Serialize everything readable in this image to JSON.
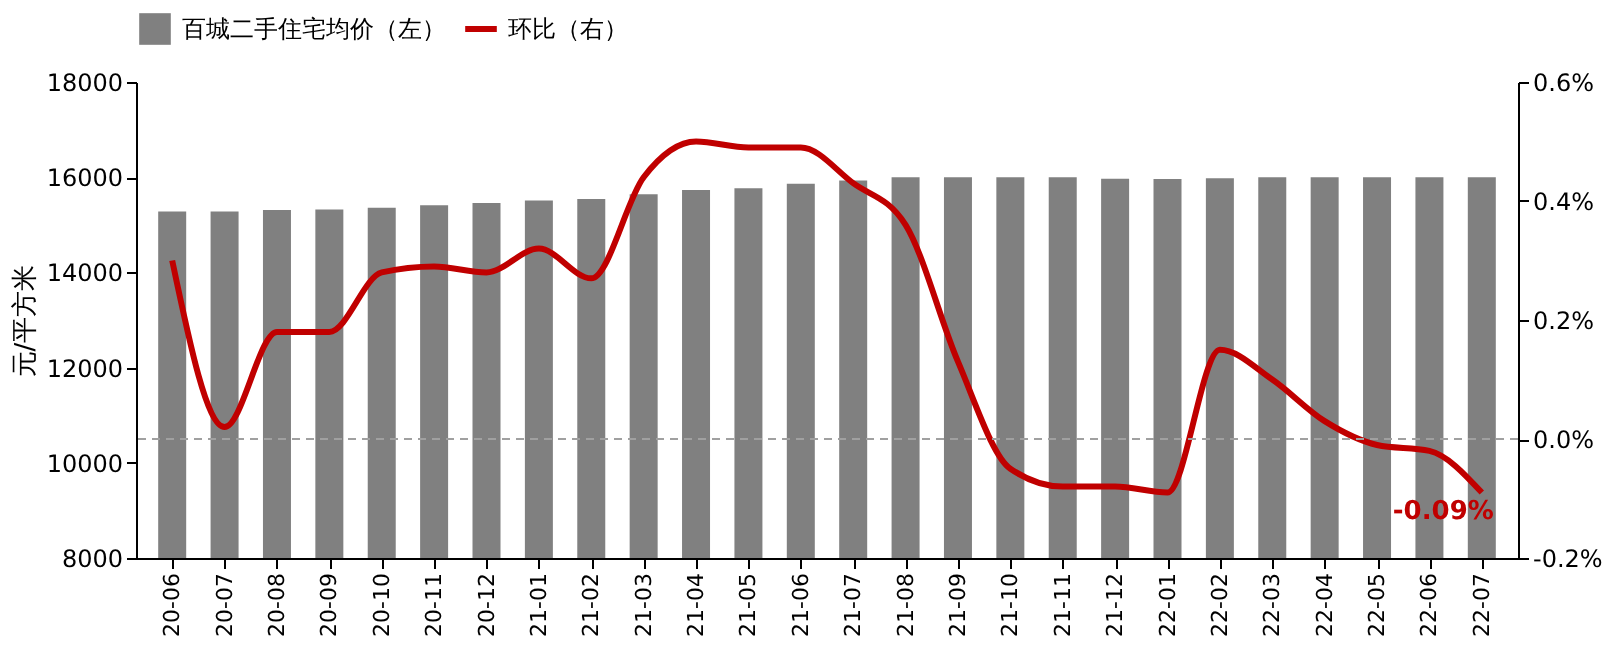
{
  "chart_data": {
    "type": "bar",
    "categories": [
      "20-06",
      "20-07",
      "20-08",
      "20-09",
      "20-10",
      "20-11",
      "20-12",
      "21-01",
      "21-02",
      "21-03",
      "21-04",
      "21-05",
      "21-06",
      "21-07",
      "21-08",
      "21-09",
      "21-10",
      "21-11",
      "21-12",
      "22-01",
      "22-02",
      "22-03",
      "22-04",
      "22-05",
      "22-06",
      "22-07"
    ],
    "ylabel": "元/平方米",
    "series": [
      {
        "name": "百城二手住宅均价（左）",
        "color": "#808080",
        "values": [
          15280,
          15280,
          15310,
          15320,
          15360,
          15410,
          15460,
          15510,
          15540,
          15640,
          15730,
          15770,
          15860,
          15930,
          16000,
          16000,
          16000,
          16000,
          15970,
          15960,
          15980,
          16000,
          16000,
          16000,
          16000,
          16000
        ]
      },
      {
        "name": "环比（右）",
        "color": "#c00000",
        "type": "line",
        "axis": "y2",
        "values": [
          0.3,
          0.02,
          0.18,
          0.18,
          0.28,
          0.29,
          0.28,
          0.32,
          0.27,
          0.44,
          0.5,
          0.49,
          0.49,
          0.43,
          0.36,
          0.13,
          -0.05,
          -0.08,
          -0.08,
          -0.09,
          0.15,
          0.1,
          0.03,
          -0.01,
          -0.02,
          -0.09
        ]
      }
    ],
    "ylim": [
      8000,
      18000
    ],
    "yticks": [
      8000,
      10000,
      12000,
      14000,
      16000,
      18000
    ],
    "y2lim": [
      -0.2,
      0.6
    ],
    "y2ticks": [
      {
        "value": -0.2,
        "label": "-0.2%"
      },
      {
        "value": 0.0,
        "label": "0.0%"
      },
      {
        "value": 0.2,
        "label": "0.2%"
      },
      {
        "value": 0.4,
        "label": "0.4%"
      },
      {
        "value": 0.6,
        "label": "0.6%"
      }
    ],
    "ref_lines": [
      {
        "axis": "y2",
        "value": 0.0,
        "color": "#a0a0a0",
        "line_style": "dashed"
      }
    ],
    "annotations": [
      "-0.09%"
    ],
    "grid": false,
    "legend": "top"
  }
}
